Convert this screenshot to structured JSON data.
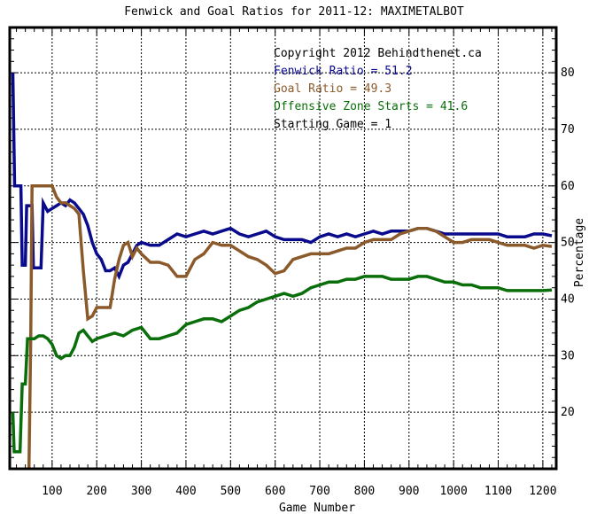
{
  "chart_data": {
    "type": "line",
    "title": "Fenwick and Goal Ratios for 2011-12: MAXIMETALBOT",
    "xlabel": "Game Number",
    "ylabel": "Percentage",
    "xlim": [
      5,
      1230
    ],
    "ylim": [
      10,
      88
    ],
    "x_ticks": [
      100,
      200,
      300,
      400,
      500,
      600,
      700,
      800,
      900,
      1000,
      1100,
      1200
    ],
    "y_ticks": [
      20,
      30,
      40,
      50,
      60,
      70,
      80
    ],
    "grid": true,
    "legend_position": "top-right",
    "annotations": [
      {
        "text": "Copyright 2012 Behindthenet.ca",
        "color": "#000000"
      },
      {
        "text": "Fenwick Ratio = 51.2",
        "color": "#0a0a8c"
      },
      {
        "text": "Goal Ratio = 49.3",
        "color": "#8b5a2b"
      },
      {
        "text": "Offensive Zone Starts = 41.6",
        "color": "#0a6e0a"
      },
      {
        "text": "Starting Game = 1",
        "color": "#000000"
      }
    ],
    "series": [
      {
        "name": "Fenwick Ratio",
        "color": "#0a0a8c",
        "x": [
          12,
          14,
          16,
          30,
          33,
          40,
          43,
          55,
          58,
          75,
          80,
          90,
          100,
          110,
          120,
          130,
          140,
          150,
          160,
          170,
          180,
          190,
          200,
          210,
          220,
          230,
          240,
          250,
          260,
          270,
          280,
          290,
          300,
          320,
          340,
          360,
          380,
          400,
          420,
          440,
          460,
          480,
          500,
          520,
          540,
          560,
          580,
          600,
          620,
          640,
          660,
          680,
          700,
          720,
          740,
          760,
          780,
          800,
          820,
          840,
          860,
          880,
          900,
          920,
          940,
          960,
          980,
          1000,
          1020,
          1040,
          1060,
          1080,
          1100,
          1120,
          1140,
          1160,
          1180,
          1200,
          1220
        ],
        "values": [
          80,
          70,
          60,
          60,
          46,
          46,
          56.5,
          56.5,
          45.5,
          45.5,
          57,
          55.5,
          56,
          56.5,
          57,
          56.5,
          57.5,
          57,
          56,
          55,
          53,
          50,
          48,
          47,
          45,
          45,
          45.5,
          44,
          46,
          46.5,
          48,
          49.5,
          50,
          49.5,
          49.5,
          50.5,
          51.5,
          51,
          51.5,
          52,
          51.5,
          52,
          52.5,
          51.5,
          51,
          51.5,
          52,
          51,
          50.5,
          50.5,
          50.5,
          50,
          51,
          51.5,
          51,
          51.5,
          51,
          51.5,
          52,
          51.5,
          52,
          52,
          52,
          52.5,
          52.5,
          52,
          51.5,
          51.5,
          51.5,
          51.5,
          51.5,
          51.5,
          51.5,
          51,
          51,
          51,
          51.5,
          51.5,
          51.2
        ]
      },
      {
        "name": "Goal Ratio",
        "color": "#8b5a2b",
        "x": [
          48,
          52,
          55,
          57,
          70,
          80,
          90,
          100,
          110,
          120,
          130,
          140,
          150,
          160,
          170,
          180,
          190,
          200,
          210,
          220,
          230,
          240,
          250,
          260,
          270,
          280,
          290,
          300,
          320,
          340,
          360,
          380,
          400,
          420,
          440,
          460,
          480,
          500,
          520,
          540,
          560,
          580,
          600,
          620,
          640,
          660,
          680,
          700,
          720,
          740,
          760,
          780,
          800,
          820,
          840,
          860,
          880,
          900,
          920,
          940,
          960,
          980,
          1000,
          1020,
          1040,
          1060,
          1080,
          1100,
          1120,
          1140,
          1160,
          1180,
          1200,
          1220
        ],
        "values": [
          10,
          33,
          60,
          60,
          60,
          60,
          60,
          60,
          58,
          57,
          57,
          56.5,
          56,
          55,
          45,
          36.5,
          37,
          38.5,
          38.5,
          38.5,
          38.5,
          43.5,
          47,
          49.5,
          50,
          47.5,
          49,
          48,
          46.5,
          46.5,
          46,
          44,
          44,
          47,
          48,
          50,
          49.5,
          49.5,
          48.5,
          47.5,
          47,
          46,
          44.5,
          45,
          47,
          47.5,
          48,
          48,
          48,
          48.5,
          49,
          49,
          50,
          50.5,
          50.5,
          50.5,
          51.5,
          52,
          52.5,
          52.5,
          52,
          51,
          50,
          50,
          50.5,
          50.5,
          50.5,
          50,
          49.5,
          49.5,
          49.5,
          49,
          49.5,
          49.3
        ]
      },
      {
        "name": "Offensive Zone Starts",
        "color": "#0a6e0a",
        "x": [
          12,
          15,
          20,
          28,
          33,
          40,
          45,
          50,
          60,
          70,
          80,
          90,
          100,
          110,
          120,
          130,
          140,
          150,
          160,
          170,
          180,
          190,
          200,
          220,
          240,
          260,
          280,
          300,
          320,
          340,
          360,
          380,
          400,
          420,
          440,
          460,
          480,
          500,
          520,
          540,
          560,
          580,
          600,
          620,
          640,
          660,
          680,
          700,
          720,
          740,
          760,
          780,
          800,
          820,
          840,
          860,
          880,
          900,
          920,
          940,
          960,
          980,
          1000,
          1020,
          1040,
          1060,
          1080,
          1100,
          1120,
          1140,
          1160,
          1180,
          1200,
          1220
        ],
        "values": [
          20,
          13,
          13,
          13,
          25,
          25,
          33,
          33,
          33,
          33.5,
          33.5,
          33,
          32,
          30,
          29.5,
          30,
          30,
          31.5,
          34,
          34.5,
          33.5,
          32.5,
          33,
          33.5,
          34,
          33.5,
          34.5,
          35,
          33,
          33,
          33.5,
          34,
          35.5,
          36,
          36.5,
          36.5,
          36,
          37,
          38,
          38.5,
          39.5,
          40,
          40.5,
          41,
          40.5,
          41,
          42,
          42.5,
          43,
          43,
          43.5,
          43.5,
          44,
          44,
          44,
          43.5,
          43.5,
          43.5,
          44,
          44,
          43.5,
          43,
          43,
          42.5,
          42.5,
          42,
          42,
          42,
          41.5,
          41.5,
          41.5,
          41.5,
          41.5,
          41.6
        ]
      }
    ]
  }
}
